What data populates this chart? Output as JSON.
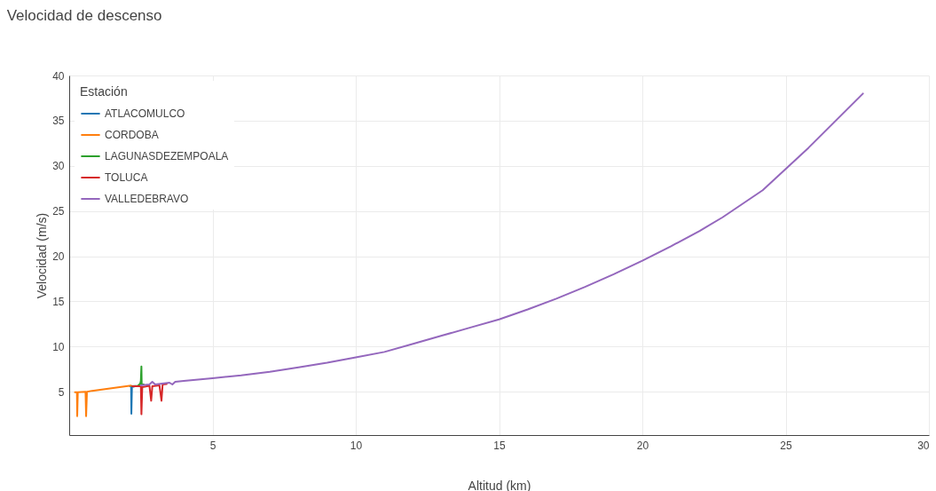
{
  "chart_data": {
    "type": "line",
    "title": "Velocidad de descenso",
    "xlabel": "Altitud (km)",
    "ylabel": "Velocidad (m/s)",
    "legend_title": "Estación",
    "legend": "top left",
    "grid": true,
    "line_style": "solid",
    "xlim": [
      0,
      30
    ],
    "xticks": [
      5,
      10,
      15,
      20,
      25,
      30
    ],
    "ylim": [
      0.2,
      40
    ],
    "yticks": [
      5,
      10,
      15,
      20,
      25,
      30,
      35,
      40
    ],
    "series": [
      {
        "name": "ATLACOMULCO",
        "color": "#1f77b4",
        "x": [
          2.12,
          2.16,
          2.17,
          2.19,
          2.3
        ],
        "values": [
          5.6,
          5.6,
          2.55,
          5.5,
          5.6
        ]
      },
      {
        "name": "CORDOBA",
        "color": "#ff7f0e",
        "x": [
          0.2,
          0.27,
          0.28,
          0.3,
          0.57,
          0.59,
          0.62,
          0.8,
          2.16
        ],
        "values": [
          4.95,
          4.95,
          2.3,
          4.95,
          5.0,
          2.3,
          5.0,
          5.1,
          5.67
        ]
      },
      {
        "name": "LAGUNASDEZEMPOALA",
        "color": "#2ca02c",
        "x": [
          2.2,
          2.4,
          2.48,
          2.5,
          2.52,
          2.53,
          2.6
        ],
        "values": [
          5.6,
          5.65,
          5.9,
          6.2,
          7.8,
          5.8,
          5.8
        ]
      },
      {
        "name": "TOLUCA",
        "color": "#d62728",
        "x": [
          2.2,
          2.45,
          2.5,
          2.52,
          2.55,
          2.8,
          2.86,
          2.9,
          3.15,
          3.22,
          3.26,
          3.4
        ],
        "values": [
          5.6,
          5.6,
          5.6,
          2.5,
          5.5,
          5.65,
          4.0,
          5.6,
          5.7,
          4.0,
          5.8,
          5.85
        ]
      },
      {
        "name": "VALLEDEBRAVO",
        "color": "#9467bd",
        "x": [
          2.5,
          2.8,
          2.9,
          3.0,
          3.5,
          3.6,
          3.7,
          4,
          5,
          6,
          7,
          8,
          9,
          10,
          11,
          12,
          13,
          14,
          15,
          16,
          17,
          18,
          19,
          20,
          21,
          22,
          22.8,
          24.2,
          25.8,
          27.7
        ],
        "values": [
          5.7,
          5.8,
          6.1,
          5.8,
          6.0,
          5.8,
          6.1,
          6.2,
          6.5,
          6.8,
          7.2,
          7.7,
          8.2,
          8.8,
          9.4,
          10.3,
          11.2,
          12.1,
          13.0,
          14.1,
          15.3,
          16.6,
          18.0,
          19.5,
          21.1,
          22.8,
          24.3,
          27.3,
          32,
          38
        ]
      }
    ]
  }
}
